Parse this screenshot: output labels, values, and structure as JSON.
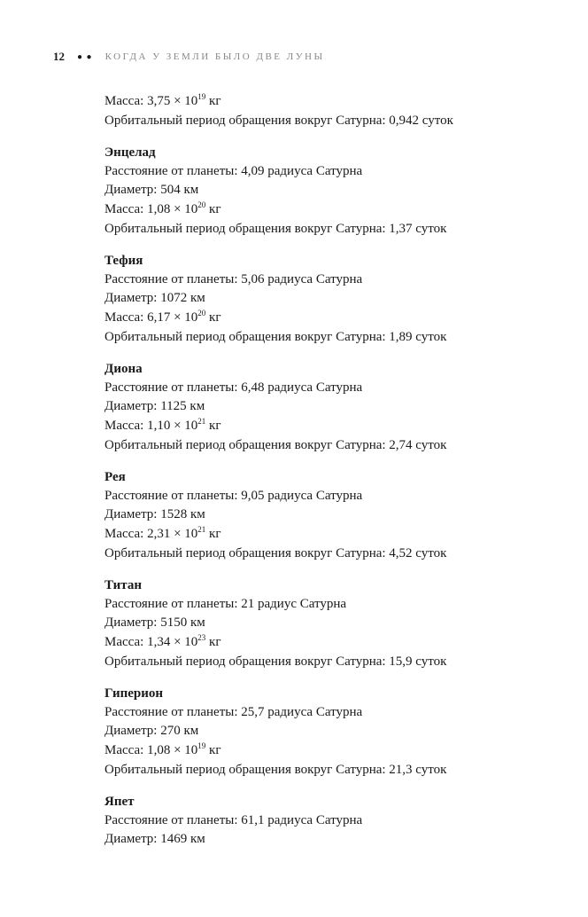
{
  "header": {
    "page_number": "12",
    "dots": "● ●",
    "running_title": "КОГДА У ЗЕМЛИ БЫЛО ДВЕ ЛУНЫ"
  },
  "intro": {
    "mass_prefix": "Масса: 3,75 ",
    "mass_times": "×",
    "mass_base": " 10",
    "mass_exp": "19",
    "mass_suffix": " кг",
    "period": "Орбитальный период обращения вокруг Сатурна: 0,942 суток"
  },
  "moons": [
    {
      "name": "Энцелад",
      "distance": "Расстояние от планеты: 4,09 радиуса Сатурна",
      "diameter": "Диаметр: 504 км",
      "mass_prefix": "Масса: 1,08 ",
      "mass_times": "×",
      "mass_base": " 10",
      "mass_exp": "20",
      "mass_suffix": " кг",
      "period": "Орбитальный период обращения вокруг Сатурна: 1,37 суток"
    },
    {
      "name": "Тефия",
      "distance": "Расстояние от планеты: 5,06 радиуса Сатурна",
      "diameter": "Диаметр: 1072 км",
      "mass_prefix": "Масса: 6,17 ",
      "mass_times": "×",
      "mass_base": " 10",
      "mass_exp": "20",
      "mass_suffix": " кг",
      "period": "Орбитальный период обращения вокруг Сатурна: 1,89 суток"
    },
    {
      "name": "Диона",
      "distance": "Расстояние от планеты: 6,48 радиуса Сатурна",
      "diameter": "Диаметр: 1125 км",
      "mass_prefix": "Масса: 1,10 ",
      "mass_times": "×",
      "mass_base": " 10",
      "mass_exp": "21",
      "mass_suffix": " кг",
      "period": "Орбитальный период обращения вокруг Сатурна: 2,74 суток"
    },
    {
      "name": "Рея",
      "distance": "Расстояние от планеты: 9,05 радиуса Сатурна",
      "diameter": "Диаметр: 1528 км",
      "mass_prefix": "Масса: 2,31 ",
      "mass_times": "×",
      "mass_base": " 10",
      "mass_exp": "21",
      "mass_suffix": " кг",
      "period": "Орбитальный период обращения вокруг Сатурна: 4,52 суток"
    },
    {
      "name": "Титан",
      "distance": "Расстояние от планеты: 21 радиус Сатурна",
      "diameter": "Диаметр: 5150 км",
      "mass_prefix": "Масса: 1,34 ",
      "mass_times": "×",
      "mass_base": " 10",
      "mass_exp": "23",
      "mass_suffix": " кг",
      "period": "Орбитальный период обращения вокруг Сатурна: 15,9 суток"
    },
    {
      "name": "Гиперион",
      "distance": "Расстояние от планеты: 25,7 радиуса Сатурна",
      "diameter": "Диаметр: 270 км",
      "mass_prefix": "Масса: 1,08 ",
      "mass_times": "×",
      "mass_base": " 10",
      "mass_exp": "19",
      "mass_suffix": " кг",
      "period": "Орбитальный период обращения вокруг Сатурна: 21,3 суток"
    },
    {
      "name": "Япет",
      "distance": "Расстояние от планеты: 61,1 радиуса Сатурна",
      "diameter": "Диаметр: 1469 км"
    }
  ]
}
